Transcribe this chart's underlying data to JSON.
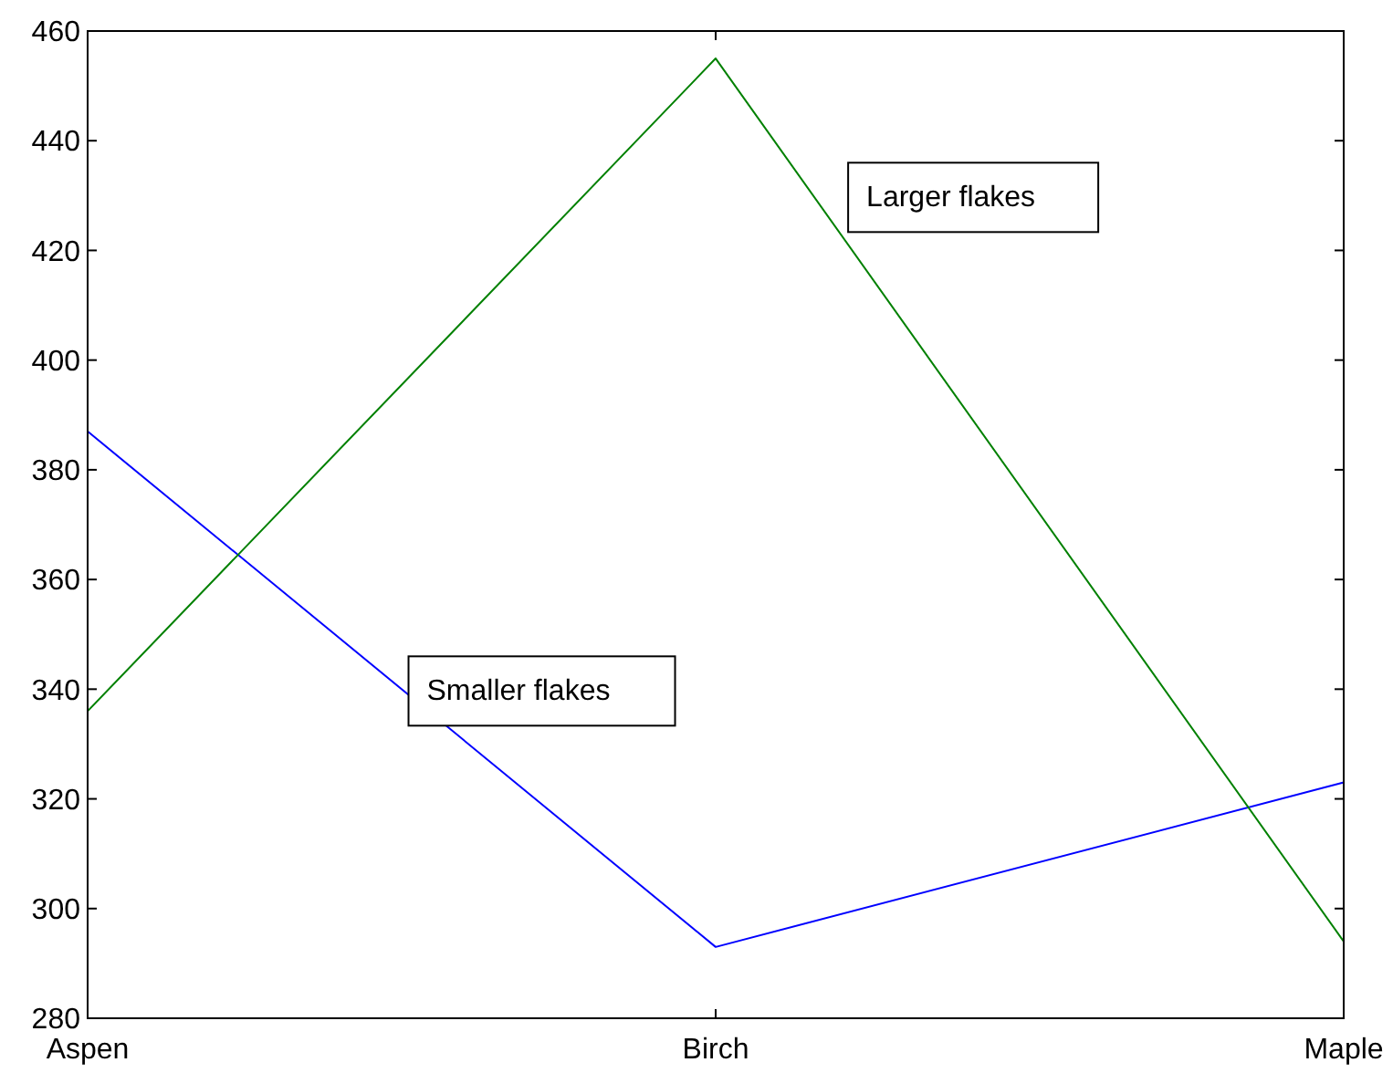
{
  "chart_data": {
    "type": "line",
    "categories": [
      "Aspen",
      "Birch",
      "Maple"
    ],
    "series": [
      {
        "name": "Smaller flakes",
        "color": "#0000ff",
        "values": [
          387,
          293,
          323
        ]
      },
      {
        "name": "Larger flakes",
        "color": "#008000",
        "values": [
          336,
          455,
          294
        ]
      }
    ],
    "ylim": [
      280,
      460
    ],
    "yticks": [
      280,
      300,
      320,
      340,
      360,
      380,
      400,
      420,
      440,
      460
    ],
    "grid": false,
    "legend": false,
    "marker": "none",
    "line_style": "solid"
  }
}
